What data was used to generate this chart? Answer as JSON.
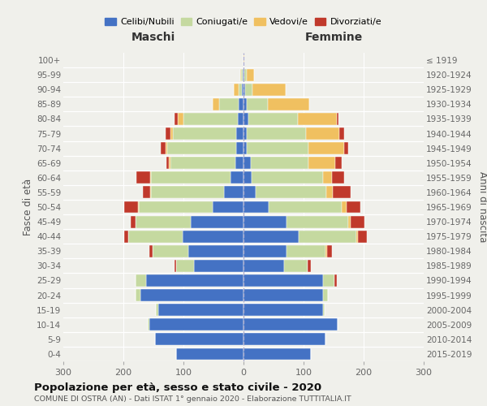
{
  "age_groups": [
    "0-4",
    "5-9",
    "10-14",
    "15-19",
    "20-24",
    "25-29",
    "30-34",
    "35-39",
    "40-44",
    "45-49",
    "50-54",
    "55-59",
    "60-64",
    "65-69",
    "70-74",
    "75-79",
    "80-84",
    "85-89",
    "90-94",
    "95-99",
    "100+"
  ],
  "birth_years": [
    "2015-2019",
    "2010-2014",
    "2005-2009",
    "2000-2004",
    "1995-1999",
    "1990-1994",
    "1985-1989",
    "1980-1984",
    "1975-1979",
    "1970-1974",
    "1965-1969",
    "1960-1964",
    "1955-1959",
    "1950-1954",
    "1945-1949",
    "1940-1944",
    "1935-1939",
    "1930-1934",
    "1925-1929",
    "1920-1924",
    "≤ 1919"
  ],
  "maschi_celibi": [
    112,
    147,
    157,
    142,
    172,
    162,
    82,
    92,
    102,
    88,
    52,
    32,
    22,
    14,
    12,
    12,
    10,
    8,
    3,
    2,
    0
  ],
  "maschi_coniugati": [
    0,
    0,
    3,
    4,
    8,
    18,
    30,
    60,
    90,
    92,
    122,
    122,
    132,
    108,
    115,
    105,
    90,
    32,
    5,
    2,
    0
  ],
  "maschi_vedovi": [
    0,
    0,
    0,
    0,
    0,
    0,
    0,
    0,
    0,
    0,
    2,
    2,
    2,
    2,
    3,
    5,
    10,
    12,
    8,
    2,
    0
  ],
  "maschi_divorziati": [
    0,
    0,
    0,
    0,
    0,
    0,
    3,
    5,
    6,
    8,
    22,
    12,
    22,
    5,
    8,
    8,
    5,
    0,
    0,
    0,
    0
  ],
  "femmine_nubili": [
    112,
    137,
    157,
    132,
    132,
    132,
    67,
    72,
    92,
    72,
    42,
    20,
    14,
    12,
    6,
    6,
    8,
    6,
    3,
    2,
    0
  ],
  "femmine_coniugate": [
    0,
    0,
    0,
    3,
    8,
    20,
    40,
    65,
    96,
    102,
    122,
    118,
    118,
    96,
    102,
    98,
    82,
    35,
    12,
    3,
    0
  ],
  "femmine_vedove": [
    0,
    0,
    0,
    0,
    0,
    0,
    0,
    2,
    3,
    5,
    8,
    10,
    15,
    45,
    60,
    55,
    65,
    68,
    55,
    12,
    2
  ],
  "femmine_divorziate": [
    0,
    0,
    0,
    0,
    0,
    3,
    5,
    8,
    15,
    22,
    22,
    30,
    20,
    10,
    6,
    8,
    3,
    0,
    0,
    0,
    0
  ],
  "colors_celibi": "#4472c4",
  "colors_coniugati": "#c5d9a0",
  "colors_vedovi": "#f0c060",
  "colors_divorziati": "#c0392b",
  "xlim": 300,
  "title": "Popolazione per età, sesso e stato civile - 2020",
  "subtitle": "COMUNE DI OSTRA (AN) - Dati ISTAT 1° gennaio 2020 - Elaborazione TUTTITALIA.IT",
  "label_maschi": "Maschi",
  "label_femmine": "Femmine",
  "ylabel_left": "Fasce di età",
  "ylabel_right": "Anni di nascita",
  "background_color": "#f0f0eb",
  "legend_labels": [
    "Celibi/Nubili",
    "Coniugati/e",
    "Vedovi/e",
    "Divorziati/e"
  ]
}
